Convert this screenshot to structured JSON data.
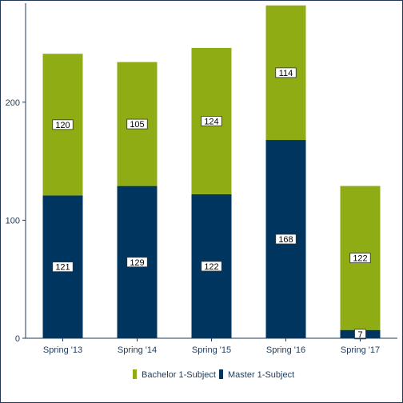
{
  "chart_data": {
    "type": "bar",
    "stacked": true,
    "categories": [
      "Spring '13",
      "Spring '14",
      "Spring '15",
      "Spring '16",
      "Spring '17"
    ],
    "series": [
      {
        "name": "Master 1-Subject",
        "color": "#003560",
        "values": [
          121,
          129,
          122,
          168,
          7
        ]
      },
      {
        "name": "Bachelor 1-Subject",
        "color": "#8fac14",
        "values": [
          120,
          105,
          124,
          114,
          122
        ]
      }
    ],
    "yticks": [
      0,
      100,
      200
    ],
    "ylim": [
      0,
      283
    ],
    "grid": false,
    "legend_position": "bottom",
    "axis_color": "#1f3a5a",
    "text_color": "#1f3a5a"
  }
}
